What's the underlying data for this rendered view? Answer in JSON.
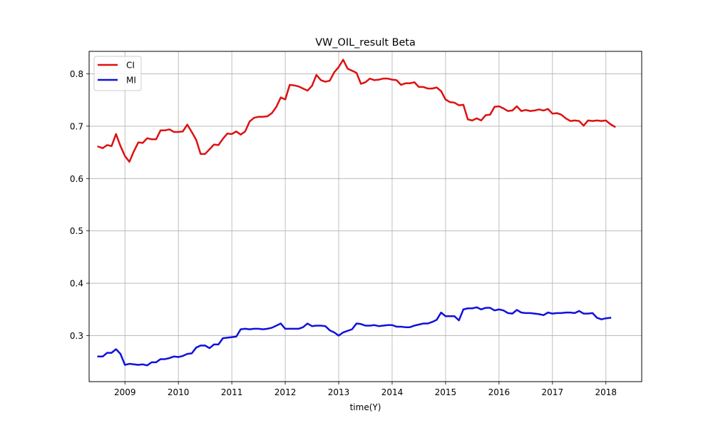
{
  "chart_data": {
    "type": "line",
    "title": "VW_OIL_result Beta",
    "xlabel": "time(Y)",
    "ylabel": "",
    "xlim": [
      2008.33,
      2018.67
    ],
    "ylim": [
      0.212,
      0.843
    ],
    "grid": true,
    "legend_position": "top-left",
    "x_ticks": [
      2009,
      2010,
      2011,
      2012,
      2013,
      2014,
      2015,
      2016,
      2017,
      2018
    ],
    "x_tick_labels": [
      "2009",
      "2010",
      "2011",
      "2012",
      "2013",
      "2014",
      "2015",
      "2016",
      "2017",
      "2018"
    ],
    "y_ticks": [
      0.3,
      0.4,
      0.5,
      0.6,
      0.7,
      0.8
    ],
    "y_tick_labels": [
      "0.3",
      "0.4",
      "0.5",
      "0.6",
      "0.7",
      "0.8"
    ],
    "x_start": 2008.5,
    "x_step": 0.08333,
    "series": [
      {
        "name": "CI",
        "color": "#dd1111",
        "values": [
          0.661,
          0.658,
          0.664,
          0.662,
          0.685,
          0.662,
          0.643,
          0.632,
          0.652,
          0.669,
          0.668,
          0.677,
          0.675,
          0.675,
          0.692,
          0.692,
          0.694,
          0.689,
          0.689,
          0.69,
          0.703,
          0.689,
          0.674,
          0.647,
          0.647,
          0.656,
          0.665,
          0.664,
          0.676,
          0.686,
          0.685,
          0.69,
          0.684,
          0.69,
          0.709,
          0.716,
          0.718,
          0.718,
          0.719,
          0.725,
          0.737,
          0.755,
          0.751,
          0.779,
          0.778,
          0.776,
          0.772,
          0.768,
          0.777,
          0.798,
          0.788,
          0.785,
          0.787,
          0.803,
          0.813,
          0.827,
          0.81,
          0.806,
          0.802,
          0.781,
          0.784,
          0.791,
          0.788,
          0.789,
          0.791,
          0.791,
          0.789,
          0.788,
          0.779,
          0.782,
          0.782,
          0.784,
          0.775,
          0.775,
          0.772,
          0.772,
          0.774,
          0.767,
          0.751,
          0.746,
          0.745,
          0.74,
          0.741,
          0.713,
          0.711,
          0.715,
          0.711,
          0.721,
          0.722,
          0.737,
          0.738,
          0.734,
          0.729,
          0.73,
          0.738,
          0.729,
          0.731,
          0.729,
          0.73,
          0.732,
          0.73,
          0.733,
          0.724,
          0.725,
          0.722,
          0.715,
          0.71,
          0.711,
          0.71,
          0.701,
          0.711,
          0.71,
          0.711,
          0.71,
          0.711,
          0.704,
          0.699
        ]
      },
      {
        "name": "MI",
        "color": "#1111dd",
        "values": [
          0.26,
          0.26,
          0.267,
          0.267,
          0.274,
          0.265,
          0.244,
          0.246,
          0.245,
          0.244,
          0.245,
          0.243,
          0.249,
          0.249,
          0.255,
          0.255,
          0.257,
          0.26,
          0.259,
          0.261,
          0.265,
          0.266,
          0.277,
          0.281,
          0.281,
          0.276,
          0.283,
          0.283,
          0.295,
          0.296,
          0.297,
          0.298,
          0.312,
          0.313,
          0.312,
          0.313,
          0.313,
          0.312,
          0.313,
          0.315,
          0.319,
          0.323,
          0.313,
          0.313,
          0.313,
          0.313,
          0.316,
          0.323,
          0.318,
          0.319,
          0.319,
          0.318,
          0.31,
          0.306,
          0.3,
          0.306,
          0.309,
          0.312,
          0.323,
          0.322,
          0.319,
          0.319,
          0.32,
          0.318,
          0.319,
          0.32,
          0.32,
          0.317,
          0.317,
          0.316,
          0.316,
          0.319,
          0.321,
          0.323,
          0.323,
          0.326,
          0.33,
          0.344,
          0.337,
          0.337,
          0.337,
          0.329,
          0.35,
          0.352,
          0.352,
          0.354,
          0.35,
          0.353,
          0.353,
          0.348,
          0.35,
          0.348,
          0.343,
          0.342,
          0.349,
          0.344,
          0.343,
          0.343,
          0.342,
          0.341,
          0.339,
          0.344,
          0.342,
          0.343,
          0.343,
          0.344,
          0.344,
          0.343,
          0.347,
          0.342,
          0.342,
          0.343,
          0.334,
          0.331,
          0.333,
          0.334
        ]
      }
    ]
  }
}
